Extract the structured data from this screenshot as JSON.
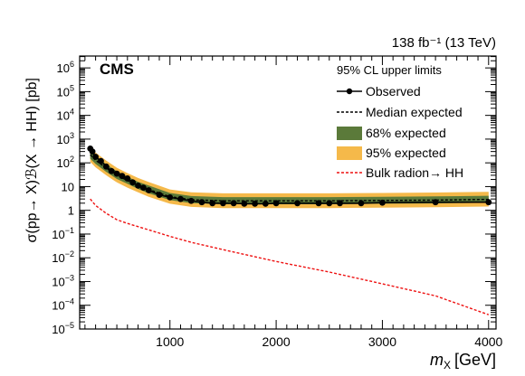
{
  "chart_data": {
    "type": "line",
    "title": "",
    "header_right": "138 fb⁻¹ (13 TeV)",
    "experiment_label": "CMS",
    "xlabel_main": "m",
    "xlabel_sub": "X",
    "xlabel_unit": "[GeV]",
    "ylabel": "σ(pp→ X)ℬ(X → HH) [pb]",
    "xlim": [
      150,
      4070
    ],
    "ylim_log10": [
      -5,
      6.5
    ],
    "log_y": true,
    "grid": false,
    "x_ticks": [
      1000,
      2000,
      3000,
      4000
    ],
    "x_tick_labels": [
      "1000",
      "2000",
      "3000",
      "4000"
    ],
    "y_ticks_log10": [
      -5,
      -4,
      -3,
      -2,
      -1,
      0,
      1,
      2,
      3,
      4,
      5,
      6
    ],
    "y_tick_labels": [
      {
        "base": "10",
        "exp": "−5"
      },
      {
        "base": "10",
        "exp": "−4"
      },
      {
        "base": "10",
        "exp": "−3"
      },
      {
        "base": "10",
        "exp": "−2"
      },
      {
        "base": "10",
        "exp": "−1"
      },
      {
        "base": "1",
        "exp": ""
      },
      {
        "base": "10",
        "exp": ""
      },
      {
        "base": "10",
        "exp": "2"
      },
      {
        "base": "10",
        "exp": "3"
      },
      {
        "base": "10",
        "exp": "4"
      },
      {
        "base": "10",
        "exp": "5"
      },
      {
        "base": "10",
        "exp": "6"
      }
    ],
    "legend": {
      "title": "95% CL upper limits",
      "placement": "top-right",
      "entries": [
        "Observed",
        "Median expected",
        "68% expected",
        "95% expected",
        "Bulk radion→ HH"
      ]
    },
    "colors": {
      "observed": "#000000",
      "median": "#000000",
      "band68": "#5b7a3a",
      "band95": "#f5b94a",
      "radion": "#ee1111"
    },
    "series": {
      "observed": {
        "x": [
          250,
          270,
          300,
          350,
          400,
          450,
          500,
          550,
          600,
          650,
          700,
          750,
          800,
          900,
          1000,
          1100,
          1200,
          1300,
          1400,
          1500,
          1600,
          1700,
          1800,
          1900,
          2000,
          2200,
          2400,
          2500,
          2600,
          2800,
          3000,
          3500,
          4000
        ],
        "y": [
          400,
          300,
          180,
          120,
          70,
          45,
          35,
          28,
          22,
          15,
          11,
          9,
          7,
          4.5,
          3.5,
          3.0,
          2.5,
          2.2,
          2.0,
          2.0,
          2.0,
          1.9,
          1.9,
          1.9,
          2.0,
          2.0,
          2.0,
          2.0,
          2.0,
          2.0,
          2.1,
          2.2,
          2.2
        ]
      },
      "median": {
        "x": [
          250,
          300,
          400,
          500,
          600,
          700,
          800,
          1000,
          1200,
          1500,
          2000,
          2500,
          3000,
          3500,
          4000
        ],
        "y": [
          220,
          130,
          60,
          30,
          18,
          11,
          7.5,
          3.8,
          2.8,
          2.5,
          2.5,
          2.5,
          2.6,
          2.7,
          2.9
        ]
      },
      "band68_low": [
        150,
        90,
        42,
        21,
        13,
        8,
        5.2,
        2.7,
        2.0,
        1.8,
        1.8,
        1.8,
        1.9,
        1.95,
        2.1
      ],
      "band68_high": [
        320,
        190,
        88,
        44,
        26,
        16,
        11,
        5.4,
        4.0,
        3.6,
        3.6,
        3.6,
        3.7,
        3.85,
        4.1
      ],
      "band95_low": [
        110,
        65,
        30,
        15,
        9,
        5.7,
        3.7,
        1.9,
        1.4,
        1.25,
        1.25,
        1.25,
        1.3,
        1.35,
        1.45
      ],
      "band95_high": [
        460,
        270,
        125,
        62,
        37,
        23,
        15.5,
        7.6,
        5.7,
        5.2,
        5.2,
        5.2,
        5.4,
        5.6,
        6.0
      ],
      "radion": {
        "x": [
          250,
          300,
          400,
          500,
          600,
          800,
          1000,
          1200,
          1500,
          2000,
          2500,
          3000,
          3500,
          4000
        ],
        "y": [
          3,
          1.6,
          0.75,
          0.4,
          0.28,
          0.15,
          0.08,
          0.045,
          0.022,
          0.007,
          0.0025,
          0.0008,
          0.00025,
          4e-05
        ]
      }
    }
  }
}
